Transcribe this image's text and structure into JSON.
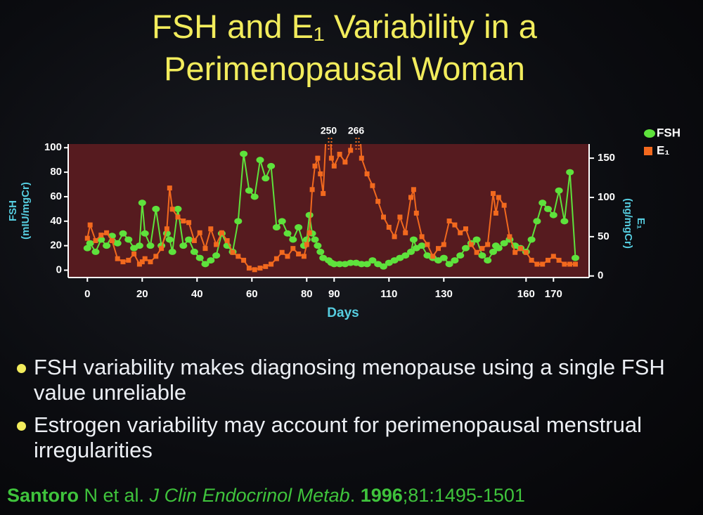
{
  "chart_data": {
    "type": "line",
    "title": "FSH and E₁ Variability in a Perimenopausal Woman",
    "xlabel": "Days",
    "ylabel": "FSH (mIU/mgCr)",
    "y2label": "E₁ (ng/mgCr)",
    "x": [
      0,
      1,
      3,
      5,
      7,
      9,
      11,
      13,
      15,
      17,
      19,
      20,
      21,
      23,
      25,
      27,
      29,
      30,
      31,
      33,
      35,
      37,
      39,
      41,
      43,
      45,
      47,
      49,
      51,
      53,
      55,
      57,
      59,
      61,
      63,
      65,
      67,
      69,
      71,
      73,
      75,
      77,
      79,
      80,
      81,
      82,
      83,
      84,
      85,
      86,
      88,
      89,
      90,
      92,
      94,
      96,
      98,
      100,
      102,
      104,
      106,
      108,
      110,
      112,
      114,
      116,
      118,
      119,
      120,
      122,
      124,
      126,
      128,
      130,
      132,
      134,
      136,
      138,
      140,
      142,
      144,
      146,
      148,
      149,
      150,
      152,
      154,
      156,
      158,
      160,
      162,
      164,
      166,
      168,
      170,
      172,
      174,
      176,
      178
    ],
    "xlim": [
      -7,
      183
    ],
    "xticks": [
      0,
      20,
      40,
      60,
      80,
      90,
      110,
      130,
      160,
      170
    ],
    "ylim": [
      -6,
      103
    ],
    "yticks": [
      0,
      20,
      40,
      60,
      80,
      100
    ],
    "y2lim": [
      -2,
      168
    ],
    "y2ticks": [
      0,
      50,
      100,
      150
    ],
    "legend": "upper right",
    "series": [
      {
        "name": "FSH",
        "color": "#5ee23c",
        "marker": "circle",
        "values": [
          18,
          22,
          15,
          25,
          20,
          28,
          22,
          30,
          25,
          18,
          20,
          55,
          30,
          20,
          50,
          20,
          30,
          25,
          15,
          50,
          20,
          25,
          15,
          10,
          5,
          8,
          12,
          30,
          20,
          15,
          40,
          95,
          65,
          60,
          90,
          75,
          85,
          35,
          40,
          30,
          25,
          35,
          20,
          25,
          45,
          30,
          25,
          20,
          15,
          10,
          8,
          6,
          5,
          5,
          5,
          6,
          6,
          5,
          5,
          8,
          5,
          3,
          6,
          8,
          10,
          12,
          15,
          25,
          18,
          20,
          12,
          10,
          8,
          10,
          5,
          8,
          12,
          18,
          22,
          25,
          12,
          8,
          15,
          20,
          18,
          22,
          25,
          20,
          18,
          15,
          25,
          40,
          55,
          50,
          45,
          65,
          40,
          80,
          10
        ]
      },
      {
        "name": "E₁",
        "color": "#f2691e",
        "marker": "square",
        "axis": "y2",
        "values": [
          48,
          65,
          45,
          52,
          55,
          45,
          22,
          18,
          20,
          28,
          15,
          18,
          22,
          18,
          25,
          35,
          60,
          112,
          85,
          75,
          70,
          68,
          45,
          55,
          35,
          60,
          40,
          55,
          45,
          30,
          25,
          20,
          10,
          8,
          10,
          12,
          15,
          22,
          30,
          25,
          35,
          28,
          25,
          40,
          55,
          110,
          140,
          150,
          130,
          105,
          250,
          150,
          140,
          155,
          145,
          160,
          266,
          150,
          130,
          115,
          95,
          75,
          62,
          50,
          75,
          55,
          100,
          110,
          80,
          50,
          40,
          25,
          35,
          40,
          70,
          65,
          55,
          60,
          40,
          30,
          35,
          40,
          105,
          80,
          100,
          90,
          50,
          30,
          35,
          30,
          20,
          15,
          15,
          20,
          25,
          20,
          15,
          15,
          15
        ]
      }
    ],
    "annotations": [
      {
        "x": 88,
        "label": "250"
      },
      {
        "x": 98,
        "label": "266"
      }
    ]
  },
  "slide": {
    "bullets": [
      "FSH variability makes diagnosing menopause using a single FSH value unreliable",
      "Estrogen variability may account for perimenopausal menstrual irregularities"
    ],
    "citation": [
      {
        "text": "Santoro",
        "style": "bold"
      },
      {
        "text": " N et al. ",
        "style": "normal"
      },
      {
        "text": "J Clin Endocrinol Metab",
        "style": "italic"
      },
      {
        "text": ". ",
        "style": "normal"
      },
      {
        "text": "1996",
        "style": "bold"
      },
      {
        "text": ";81:1495-1501",
        "style": "normal"
      }
    ]
  }
}
